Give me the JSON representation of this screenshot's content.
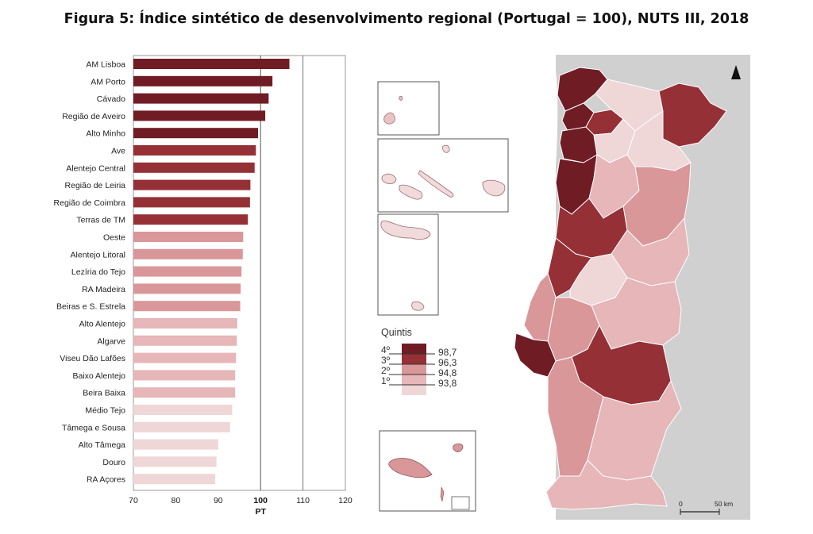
{
  "title": "Figura 5: Índice sintético de desenvolvimento regional (Portugal = 100), NUTS III, 2018",
  "chart_data": {
    "type": "bar",
    "orientation": "horizontal",
    "title": "Figura 5: Índice sintético de desenvolvimento regional (Portugal = 100), NUTS III, 2018",
    "categories": [
      "AM Lisboa",
      "AM Porto",
      "Cávado",
      "Região de Aveiro",
      "Alto Minho",
      "Ave",
      "Alentejo Central",
      "Região de Leiria",
      "Região de Coimbra",
      "Terras de TM",
      "Oeste",
      "Alentejo Litoral",
      "Lezíria do Tejo",
      "RA Madeira",
      "Beiras e S. Estrela",
      "Alto Alentejo",
      "Algarve",
      "Viseu Dão Lafões",
      "Baixo Alentejo",
      "Beira Baixa",
      "Médio Tejo",
      "Tâmega e Sousa",
      "Alto Tâmega",
      "Douro",
      "RA Açores"
    ],
    "values": [
      106.8,
      102.8,
      101.9,
      101.1,
      99.4,
      98.9,
      98.6,
      97.6,
      97.5,
      97.0,
      95.9,
      95.8,
      95.5,
      95.3,
      95.2,
      94.5,
      94.4,
      94.2,
      94.0,
      94.0,
      93.3,
      92.8,
      90.0,
      89.6,
      89.3
    ],
    "quintile": [
      4,
      4,
      4,
      4,
      4,
      3,
      3,
      3,
      3,
      3,
      2,
      2,
      2,
      2,
      2,
      1,
      1,
      1,
      1,
      1,
      0,
      0,
      0,
      0,
      0
    ],
    "xlim": [
      70,
      120
    ],
    "xticks": [
      70,
      80,
      90,
      100,
      110,
      120
    ],
    "reference_line": 100,
    "reference_label": "PT",
    "colors": [
      "#efd6d7",
      "#e6b6b8",
      "#d9979a",
      "#953037",
      "#6f1c24"
    ],
    "legend": {
      "title": "Quintis",
      "classes": [
        "4º",
        "3º",
        "2º",
        "1º"
      ],
      "breaks": [
        "98,7",
        "96,3",
        "94,8",
        "93,8"
      ]
    },
    "map_scale": {
      "start": "0",
      "end": "50 km"
    }
  }
}
